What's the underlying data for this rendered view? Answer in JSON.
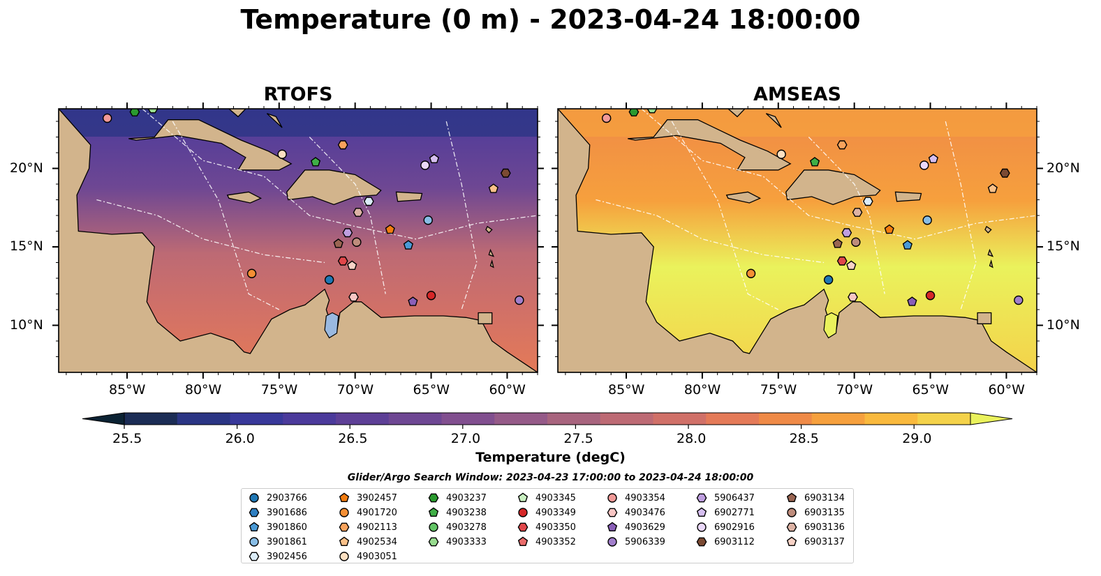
{
  "title": "Temperature (0 m) - 2023-04-24 18:00:00",
  "panels": [
    {
      "title": "RTOFS",
      "lat_labels_side": "left"
    },
    {
      "title": "AMSEAS",
      "lat_labels_side": "right"
    }
  ],
  "axes": {
    "lon_labels": [
      "85°W",
      "80°W",
      "75°W",
      "70°W",
      "65°W",
      "60°W"
    ],
    "lat_labels": [
      "20°N",
      "15°N",
      "10°N"
    ]
  },
  "colorbar": {
    "label": "Temperature (degC)",
    "ticks": [
      "25.5",
      "26.0",
      "26.5",
      "27.0",
      "27.5",
      "28.0",
      "28.5",
      "29.0"
    ],
    "colors": [
      "#0b2233",
      "#1b2c55",
      "#2a3584",
      "#38389a",
      "#4b3a9b",
      "#5d3f96",
      "#6e4793",
      "#814f8f",
      "#955a88",
      "#a8647e",
      "#bd6a74",
      "#d07068",
      "#e47a58",
      "#ef8a47",
      "#f6a03d",
      "#f9b93d",
      "#f4d24a",
      "#eaf25c"
    ]
  },
  "legend": {
    "title": "Glider/Argo Search Window: 2023-04-23 17:00:00 to 2023-04-24 18:00:00",
    "columns": [
      [
        {
          "id": "2903766",
          "marker": "circle",
          "color": "#1f77b4"
        },
        {
          "id": "3901686",
          "marker": "hexagon",
          "color": "#2f7fc1"
        },
        {
          "id": "3901860",
          "marker": "pentagon",
          "color": "#4a9ad6"
        },
        {
          "id": "3901861",
          "marker": "circle",
          "color": "#88bde6"
        },
        {
          "id": "3902456",
          "marker": "hexagon",
          "color": "#dbecf8"
        }
      ],
      [
        {
          "id": "3902457",
          "marker": "pentagon",
          "color": "#f27c0f"
        },
        {
          "id": "4901720",
          "marker": "circle",
          "color": "#f58f34"
        },
        {
          "id": "4902113",
          "marker": "hexagon",
          "color": "#f9a35c"
        },
        {
          "id": "4902534",
          "marker": "pentagon",
          "color": "#fbc189"
        },
        {
          "id": "4903051",
          "marker": "circle",
          "color": "#fde0c2"
        }
      ],
      [
        {
          "id": "4903237",
          "marker": "hexagon",
          "color": "#2a9a2f"
        },
        {
          "id": "4903238",
          "marker": "pentagon",
          "color": "#3fae46"
        },
        {
          "id": "4903278",
          "marker": "circle",
          "color": "#62c465"
        },
        {
          "id": "4903333",
          "marker": "hexagon",
          "color": "#98dc8f"
        }
      ],
      [
        {
          "id": "4903345",
          "marker": "pentagon",
          "color": "#c9f0c1"
        },
        {
          "id": "4903349",
          "marker": "circle",
          "color": "#d62728"
        },
        {
          "id": "4903350",
          "marker": "hexagon",
          "color": "#e0474a"
        },
        {
          "id": "4903352",
          "marker": "pentagon",
          "color": "#ea6c6b"
        }
      ],
      [
        {
          "id": "4903354",
          "marker": "circle",
          "color": "#f29a98"
        },
        {
          "id": "4903476",
          "marker": "hexagon",
          "color": "#f8c6c4"
        },
        {
          "id": "4903629",
          "marker": "pentagon",
          "color": "#8a5fb8"
        },
        {
          "id": "5906339",
          "marker": "circle",
          "color": "#a27fcc"
        }
      ],
      [
        {
          "id": "5906437",
          "marker": "hexagon",
          "color": "#bf9fe0"
        },
        {
          "id": "6902771",
          "marker": "pentagon",
          "color": "#d6bff0"
        },
        {
          "id": "6902916",
          "marker": "circle",
          "color": "#ead8fa"
        },
        {
          "id": "6903112",
          "marker": "hexagon",
          "color": "#7b4a33"
        }
      ],
      [
        {
          "id": "6903134",
          "marker": "pentagon",
          "color": "#9a6552"
        },
        {
          "id": "6903135",
          "marker": "circle",
          "color": "#be8c7c"
        },
        {
          "id": "6903136",
          "marker": "hexagon",
          "color": "#ddb3a5"
        },
        {
          "id": "6903137",
          "marker": "pentagon",
          "color": "#f9d3c7"
        }
      ]
    ]
  },
  "markers": [
    {
      "id": "4903237",
      "lon": -84.5,
      "lat": 23.6,
      "marker": "hexagon",
      "color": "#2a9a2f"
    },
    {
      "id": "4903333",
      "lon": -83.3,
      "lat": 23.8,
      "marker": "hexagon",
      "color": "#98dc8f"
    },
    {
      "id": "4903354",
      "lon": -86.3,
      "lat": 23.2,
      "marker": "circle",
      "color": "#f29a98"
    },
    {
      "id": "4903051",
      "lon": -74.8,
      "lat": 20.9,
      "marker": "circle",
      "color": "#fde0c2"
    },
    {
      "id": "4902113",
      "lon": -70.8,
      "lat": 21.5,
      "marker": "hexagon",
      "color": "#f9a35c"
    },
    {
      "id": "4903238",
      "lon": -72.6,
      "lat": 20.4,
      "marker": "pentagon",
      "color": "#3fae46"
    },
    {
      "id": "6902771",
      "lon": -64.8,
      "lat": 20.6,
      "marker": "pentagon",
      "color": "#d6bff0"
    },
    {
      "id": "6902916",
      "lon": -65.4,
      "lat": 20.2,
      "marker": "circle",
      "color": "#ead8fa"
    },
    {
      "id": "6903112",
      "lon": -60.1,
      "lat": 19.7,
      "marker": "hexagon",
      "color": "#7b4a33"
    },
    {
      "id": "4902534",
      "lon": -60.9,
      "lat": 18.7,
      "marker": "pentagon",
      "color": "#fbc189"
    },
    {
      "id": "3902456",
      "lon": -69.1,
      "lat": 17.9,
      "marker": "hexagon",
      "color": "#dbecf8"
    },
    {
      "id": "6903136",
      "lon": -69.8,
      "lat": 17.2,
      "marker": "hexagon",
      "color": "#ddb3a5"
    },
    {
      "id": "3902457",
      "lon": -67.7,
      "lat": 16.1,
      "marker": "pentagon",
      "color": "#f27c0f"
    },
    {
      "id": "3901861",
      "lon": -65.2,
      "lat": 16.7,
      "marker": "circle",
      "color": "#88bde6"
    },
    {
      "id": "5906437",
      "lon": -70.5,
      "lat": 15.9,
      "marker": "hexagon",
      "color": "#bf9fe0"
    },
    {
      "id": "6903135",
      "lon": -69.9,
      "lat": 15.3,
      "marker": "circle",
      "color": "#be8c7c"
    },
    {
      "id": "6903134",
      "lon": -71.1,
      "lat": 15.2,
      "marker": "pentagon",
      "color": "#9a6552"
    },
    {
      "id": "3901860",
      "lon": -66.5,
      "lat": 15.1,
      "marker": "pentagon",
      "color": "#4a9ad6"
    },
    {
      "id": "4903350",
      "lon": -70.8,
      "lat": 14.1,
      "marker": "hexagon",
      "color": "#e0474a"
    },
    {
      "id": "6903137",
      "lon": -70.2,
      "lat": 13.8,
      "marker": "pentagon",
      "color": "#f9d3c7"
    },
    {
      "id": "4901720",
      "lon": -76.8,
      "lat": 13.3,
      "marker": "circle",
      "color": "#f58f34"
    },
    {
      "id": "2903766",
      "lon": -71.7,
      "lat": 12.9,
      "marker": "circle",
      "color": "#1f77b4"
    },
    {
      "id": "4903476",
      "lon": -70.1,
      "lat": 11.8,
      "marker": "hexagon",
      "color": "#f8c6c4"
    },
    {
      "id": "4903349",
      "lon": -65.0,
      "lat": 11.9,
      "marker": "circle",
      "color": "#d62728"
    },
    {
      "id": "4903629",
      "lon": -66.2,
      "lat": 11.5,
      "marker": "pentagon",
      "color": "#8a5fb8"
    },
    {
      "id": "5906339",
      "lon": -59.2,
      "lat": 11.6,
      "marker": "circle",
      "color": "#a27fcc"
    }
  ],
  "map_extent": {
    "lon": [
      -89.5,
      -58.0
    ],
    "lat": [
      7.0,
      23.8
    ]
  }
}
